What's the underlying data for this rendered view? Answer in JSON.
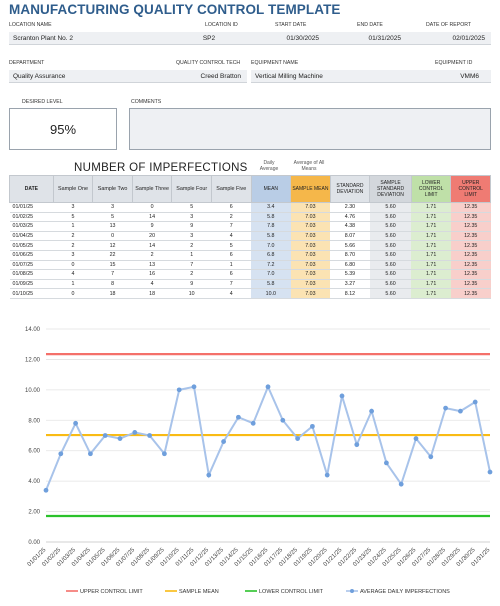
{
  "title": "MANUFACTURING QUALITY CONTROL TEMPLATE",
  "info1": {
    "location_name_label": "LOCATION NAME",
    "location_name": "Scranton Plant No. 2",
    "location_id_label": "LOCATION ID",
    "location_id": "SP2",
    "start_date_label": "START DATE",
    "start_date": "01/30/2025",
    "end_date_label": "END DATE",
    "end_date": "01/31/2025",
    "report_date_label": "DATE OF REPORT",
    "report_date": "02/01/2025"
  },
  "info2": {
    "department_label": "DEPARTMENT",
    "department": "Quality Assurance",
    "tech_label": "QUALITY CONTROL TECH",
    "tech": "Creed Bratton",
    "equipment_name_label": "EQUIPMENT NAME",
    "equipment_name": "Vertical Milling Machine",
    "equipment_id_label": "EQUIPMENT ID",
    "equipment_id": "VMM6"
  },
  "desired_level_label": "DESIRED LEVEL",
  "desired_level": "95%",
  "comments_label": "COMMENTS",
  "comments": "",
  "table": {
    "title": "NUMBER OF IMPERFECTIONS",
    "note_daily": "Daily Average",
    "note_all": "Average of All Means",
    "headers": [
      "DATE",
      "Sample One",
      "Sample Two",
      "Sample Three",
      "Sample Four",
      "Sample Five",
      "MEAN",
      "SAMPLE MEAN",
      "STANDARD DEVIATION",
      "SAMPLE STANDARD DEVIATION",
      "LOWER CONTROL LIMIT",
      "UPPER CONTROL LIMIT"
    ],
    "rows": [
      [
        "01/01/25",
        "3",
        "3",
        "0",
        "5",
        "6",
        "3.4",
        "7.03",
        "2.30",
        "5.60",
        "1.71",
        "12.35"
      ],
      [
        "01/02/25",
        "5",
        "5",
        "14",
        "3",
        "2",
        "5.8",
        "7.03",
        "4.76",
        "5.60",
        "1.71",
        "12.35"
      ],
      [
        "01/03/25",
        "1",
        "13",
        "9",
        "9",
        "7",
        "7.8",
        "7.03",
        "4.38",
        "5.60",
        "1.71",
        "12.35"
      ],
      [
        "01/04/25",
        "2",
        "0",
        "20",
        "3",
        "4",
        "5.8",
        "7.03",
        "8.07",
        "5.60",
        "1.71",
        "12.35"
      ],
      [
        "01/05/25",
        "2",
        "12",
        "14",
        "2",
        "5",
        "7.0",
        "7.03",
        "5.66",
        "5.60",
        "1.71",
        "12.35"
      ],
      [
        "01/06/25",
        "3",
        "22",
        "2",
        "1",
        "6",
        "6.8",
        "7.03",
        "8.70",
        "5.60",
        "1.71",
        "12.35"
      ],
      [
        "01/07/25",
        "0",
        "15",
        "13",
        "7",
        "1",
        "7.2",
        "7.03",
        "6.80",
        "5.60",
        "1.71",
        "12.35"
      ],
      [
        "01/08/25",
        "4",
        "7",
        "16",
        "2",
        "6",
        "7.0",
        "7.03",
        "5.39",
        "5.60",
        "1.71",
        "12.35"
      ],
      [
        "01/09/25",
        "1",
        "8",
        "4",
        "9",
        "7",
        "5.8",
        "7.03",
        "3.27",
        "5.60",
        "1.71",
        "12.35"
      ],
      [
        "01/10/25",
        "0",
        "18",
        "18",
        "10",
        "4",
        "10.0",
        "7.03",
        "8.12",
        "5.60",
        "1.71",
        "12.35"
      ]
    ]
  },
  "colors": {
    "ucl": "#f4706a",
    "sample_mean": "#f9bb14",
    "lcl": "#2bc22b",
    "daily": "#a8c3ea",
    "daily_marker": "#6f9fdc"
  },
  "chart_data": {
    "type": "line",
    "categories": [
      "01/01/25",
      "01/02/25",
      "01/03/25",
      "01/04/25",
      "01/05/25",
      "01/06/25",
      "01/07/25",
      "01/08/25",
      "01/09/25",
      "01/10/25",
      "01/11/25",
      "01/12/25",
      "01/13/25",
      "01/14/25",
      "01/15/25",
      "01/16/25",
      "01/17/25",
      "01/18/25",
      "01/19/25",
      "01/20/25",
      "01/21/25",
      "01/22/25",
      "01/23/25",
      "01/24/25",
      "01/25/25",
      "01/26/25",
      "01/27/25",
      "01/28/25",
      "01/29/25",
      "01/30/25",
      "01/31/25"
    ],
    "ylim": [
      0,
      14
    ],
    "yticks": [
      "0.00",
      "2.00",
      "4.00",
      "6.00",
      "8.00",
      "10.00",
      "12.00",
      "14.00"
    ],
    "grid": true,
    "legend_position": "bottom",
    "series": [
      {
        "name": "UPPER CONTROL LIMIT",
        "values": [
          12.35,
          12.35,
          12.35,
          12.35,
          12.35,
          12.35,
          12.35,
          12.35,
          12.35,
          12.35,
          12.35,
          12.35,
          12.35,
          12.35,
          12.35,
          12.35,
          12.35,
          12.35,
          12.35,
          12.35,
          12.35,
          12.35,
          12.35,
          12.35,
          12.35,
          12.35,
          12.35,
          12.35,
          12.35,
          12.35,
          12.35
        ]
      },
      {
        "name": "SAMPLE MEAN",
        "values": [
          7.03,
          7.03,
          7.03,
          7.03,
          7.03,
          7.03,
          7.03,
          7.03,
          7.03,
          7.03,
          7.03,
          7.03,
          7.03,
          7.03,
          7.03,
          7.03,
          7.03,
          7.03,
          7.03,
          7.03,
          7.03,
          7.03,
          7.03,
          7.03,
          7.03,
          7.03,
          7.03,
          7.03,
          7.03,
          7.03,
          7.03
        ]
      },
      {
        "name": "LOWER CONTROL LIMIT",
        "values": [
          1.71,
          1.71,
          1.71,
          1.71,
          1.71,
          1.71,
          1.71,
          1.71,
          1.71,
          1.71,
          1.71,
          1.71,
          1.71,
          1.71,
          1.71,
          1.71,
          1.71,
          1.71,
          1.71,
          1.71,
          1.71,
          1.71,
          1.71,
          1.71,
          1.71,
          1.71,
          1.71,
          1.71,
          1.71,
          1.71,
          1.71
        ]
      },
      {
        "name": "AVERAGE DAILY IMPERFECTIONS",
        "values": [
          3.4,
          5.8,
          7.8,
          5.8,
          7.0,
          6.8,
          7.2,
          7.0,
          5.8,
          10.0,
          10.2,
          4.4,
          6.6,
          8.2,
          7.8,
          10.2,
          8.0,
          6.8,
          7.6,
          4.4,
          9.6,
          6.4,
          8.6,
          5.2,
          3.8,
          6.8,
          5.6,
          8.8,
          8.6,
          9.2,
          4.6
        ]
      }
    ]
  }
}
